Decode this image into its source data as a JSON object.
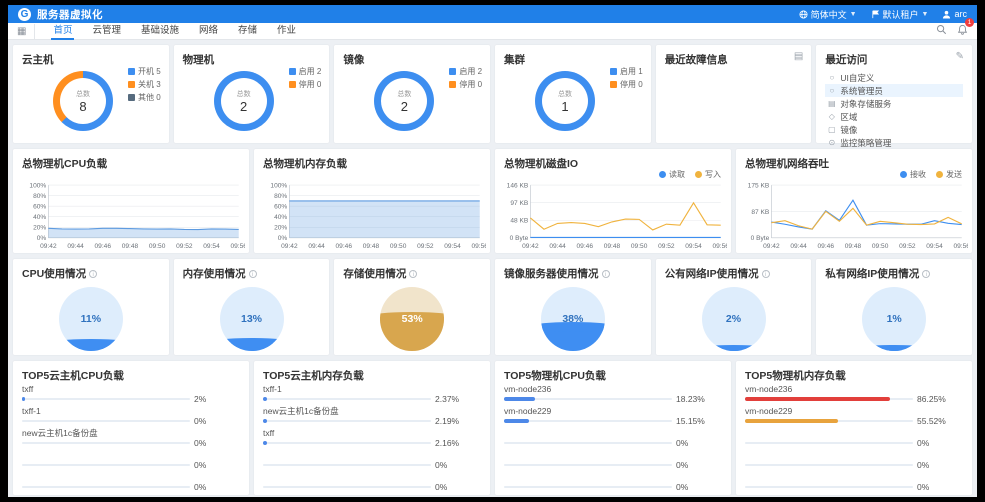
{
  "header": {
    "app_title": "服务器虚拟化",
    "language": "简体中文",
    "tenant": "默认租户",
    "user": "arc"
  },
  "nav": {
    "items": [
      {
        "label": "首页",
        "active": true
      },
      {
        "label": "云管理",
        "active": false
      },
      {
        "label": "基础设施",
        "active": false
      },
      {
        "label": "网络",
        "active": false
      },
      {
        "label": "存储",
        "active": false
      },
      {
        "label": "作业",
        "active": false
      }
    ],
    "notification_badge": "1"
  },
  "colors": {
    "primary": "#2080E8",
    "blue": "#3D8EF0",
    "orange": "#FF8F1F",
    "gray": "#566B7E",
    "yellow": "#F0B33E",
    "red": "#E23F3B",
    "bar_orange": "#E8A33D"
  },
  "donut_cards": [
    {
      "title": "云主机",
      "total_label": "总数",
      "total": "8",
      "segments": [
        {
          "label": "开机",
          "value": 5,
          "color": "#3D8EF0"
        },
        {
          "label": "关机",
          "value": 3,
          "color": "#FF8F1F"
        },
        {
          "label": "其他",
          "value": 0,
          "color": "#566B7E"
        }
      ]
    },
    {
      "title": "物理机",
      "total_label": "总数",
      "total": "2",
      "segments": [
        {
          "label": "启用",
          "value": 2,
          "color": "#3D8EF0"
        },
        {
          "label": "停用",
          "value": 0,
          "color": "#FF8F1F"
        }
      ]
    },
    {
      "title": "镜像",
      "total_label": "总数",
      "total": "2",
      "segments": [
        {
          "label": "启用",
          "value": 2,
          "color": "#3D8EF0"
        },
        {
          "label": "停用",
          "value": 0,
          "color": "#FF8F1F"
        }
      ]
    },
    {
      "title": "集群",
      "total_label": "总数",
      "total": "1",
      "segments": [
        {
          "label": "启用",
          "value": 1,
          "color": "#3D8EF0"
        },
        {
          "label": "停用",
          "value": 0,
          "color": "#FF8F1F"
        }
      ]
    }
  ],
  "recent_fault": {
    "title": "最近故障信息",
    "icon": "▤"
  },
  "recent_visits": {
    "title": "最近访问",
    "icon": "✎",
    "items": [
      {
        "icon": "○",
        "label": "UI自定义"
      },
      {
        "icon": "○",
        "label": "系统管理员"
      },
      {
        "icon": "▤",
        "label": "对象存储服务"
      },
      {
        "icon": "◇",
        "label": "区域"
      },
      {
        "icon": "▢",
        "label": "镜像"
      },
      {
        "icon": "⊙",
        "label": "监控策略管理"
      }
    ],
    "highlight_index": 1
  },
  "chart_data": [
    {
      "key": "cpu",
      "type": "area",
      "title": "总物理机CPU负载",
      "x_ticks": [
        "09:42",
        "09:44",
        "09:46",
        "09:48",
        "09:50",
        "09:52",
        "09:54",
        "09:56"
      ],
      "y_ticks": [
        "0%",
        "20%",
        "40%",
        "60%",
        "80%",
        "100%"
      ],
      "ymax": 100,
      "series": [
        {
          "name": "CPU负载",
          "color": "#5E9BE0",
          "fill": true,
          "values": [
            18,
            17,
            16.5,
            17,
            18,
            18,
            17.5,
            17,
            16.5,
            17,
            16,
            15.5,
            17,
            16.5,
            16
          ]
        }
      ]
    },
    {
      "key": "mem",
      "type": "area",
      "title": "总物理机内存负载",
      "x_ticks": [
        "09:42",
        "09:44",
        "09:46",
        "09:48",
        "09:50",
        "09:52",
        "09:54",
        "09:56"
      ],
      "y_ticks": [
        "0%",
        "20%",
        "40%",
        "60%",
        "80%",
        "100%"
      ],
      "ymax": 100,
      "series": [
        {
          "name": "内存负载",
          "color": "#5E9BE0",
          "fill": true,
          "values": [
            70,
            70,
            70,
            70,
            70,
            70,
            70,
            70,
            70,
            70,
            70,
            70,
            70,
            70,
            70
          ]
        }
      ]
    },
    {
      "key": "disk",
      "type": "line",
      "title": "总物理机磁盘IO",
      "legend": [
        "读取",
        "写入"
      ],
      "x_ticks": [
        "09:42",
        "09:44",
        "09:46",
        "09:48",
        "09:50",
        "09:52",
        "09:54",
        "09:56"
      ],
      "y_ticks": [
        "0 Byte",
        "48 KB",
        "97 KB",
        "146 KB"
      ],
      "ymax": 146,
      "series": [
        {
          "name": "读取",
          "color": "#3D8EF0",
          "fill": false,
          "values": [
            1,
            1,
            1,
            1,
            1,
            1,
            1,
            1,
            1,
            1,
            1,
            1,
            1,
            1,
            1
          ]
        },
        {
          "name": "写入",
          "color": "#F0B33E",
          "fill": false,
          "values": [
            55,
            24,
            40,
            42,
            40,
            31,
            44,
            52,
            51,
            22,
            38,
            35,
            97,
            36,
            35
          ]
        }
      ]
    },
    {
      "key": "net",
      "type": "line",
      "title": "总物理机网络吞吐",
      "legend": [
        "接收",
        "发送"
      ],
      "x_ticks": [
        "09:42",
        "09:44",
        "09:46",
        "09:48",
        "09:50",
        "09:52",
        "09:54",
        "09:56"
      ],
      "y_ticks": [
        "0 Byte",
        "87 KB",
        "175 KB"
      ],
      "ymax": 175,
      "series": [
        {
          "name": "接收",
          "color": "#3D8EF0",
          "fill": false,
          "values": [
            52,
            45,
            36,
            29,
            90,
            58,
            125,
            42,
            47,
            46,
            45,
            45,
            57,
            48,
            44
          ]
        },
        {
          "name": "发送",
          "color": "#F0B33E",
          "fill": false,
          "values": [
            50,
            57,
            40,
            29,
            88,
            55,
            98,
            42,
            55,
            50,
            45,
            44,
            46,
            68,
            46
          ]
        }
      ]
    }
  ],
  "gauges": [
    {
      "title": "CPU使用情况",
      "pct": 11,
      "value": "11%",
      "bg": "#DEEDFC",
      "fill": "#3F8EF2",
      "text_color": "#3072BE"
    },
    {
      "title": "内存使用情况",
      "pct": 13,
      "value": "13%",
      "bg": "#DEEDFC",
      "fill": "#3F8EF2",
      "text_color": "#3072BE"
    },
    {
      "title": "存储使用情况",
      "pct": 53,
      "value": "53%",
      "bg": "#F1E4CB",
      "fill": "#D8A64E",
      "text_color": "#FFFFFF"
    },
    {
      "title": "镜像服务器使用情况",
      "pct": 38,
      "value": "38%",
      "bg": "#DEEDFC",
      "fill": "#3F8EF2",
      "text_color": "#3072BE"
    },
    {
      "title": "公有网络IP使用情况",
      "pct": 2,
      "value": "2%",
      "bg": "#DEEDFC",
      "fill": "#3F8EF2",
      "text_color": "#3072BE"
    },
    {
      "title": "私有网络IP使用情况",
      "pct": 1,
      "value": "1%",
      "bg": "#DEEDFC",
      "fill": "#3F8EF2",
      "text_color": "#3072BE"
    }
  ],
  "top5": [
    {
      "title": "TOP5云主机CPU负载",
      "items": [
        {
          "label": "txff",
          "value": "2%",
          "pct": 2,
          "color": "#4D88E8"
        },
        {
          "label": "txff-1",
          "value": "0%",
          "pct": 0,
          "color": "#4D88E8"
        },
        {
          "label": "new云主机1c备份盘",
          "value": "0%",
          "pct": 0,
          "color": "#4D88E8"
        },
        {
          "label": "",
          "value": "0%",
          "pct": 0,
          "color": "#4D88E8"
        },
        {
          "label": "",
          "value": "0%",
          "pct": 0,
          "color": "#4D88E8"
        }
      ]
    },
    {
      "title": "TOP5云主机内存负载",
      "items": [
        {
          "label": "txff-1",
          "value": "2.37%",
          "pct": 2.37,
          "color": "#4D88E8"
        },
        {
          "label": "new云主机1c备份盘",
          "value": "2.19%",
          "pct": 2.19,
          "color": "#4D88E8"
        },
        {
          "label": "txff",
          "value": "2.16%",
          "pct": 2.16,
          "color": "#4D88E8"
        },
        {
          "label": "",
          "value": "0%",
          "pct": 0,
          "color": "#4D88E8"
        },
        {
          "label": "",
          "value": "0%",
          "pct": 0,
          "color": "#4D88E8"
        }
      ]
    },
    {
      "title": "TOP5物理机CPU负载",
      "items": [
        {
          "label": "vm-node236",
          "value": "18.23%",
          "pct": 18.23,
          "color": "#4D88E8"
        },
        {
          "label": "vm-node229",
          "value": "15.15%",
          "pct": 15.15,
          "color": "#4D88E8"
        },
        {
          "label": "",
          "value": "0%",
          "pct": 0,
          "color": "#4D88E8"
        },
        {
          "label": "",
          "value": "0%",
          "pct": 0,
          "color": "#4D88E8"
        },
        {
          "label": "",
          "value": "0%",
          "pct": 0,
          "color": "#4D88E8"
        }
      ]
    },
    {
      "title": "TOP5物理机内存负载",
      "items": [
        {
          "label": "vm-node236",
          "value": "86.25%",
          "pct": 86.25,
          "color": "#E23F3B"
        },
        {
          "label": "vm-node229",
          "value": "55.52%",
          "pct": 55.52,
          "color": "#E8A33D"
        },
        {
          "label": "",
          "value": "0%",
          "pct": 0,
          "color": "#4D88E8"
        },
        {
          "label": "",
          "value": "0%",
          "pct": 0,
          "color": "#4D88E8"
        },
        {
          "label": "",
          "value": "0%",
          "pct": 0,
          "color": "#4D88E8"
        }
      ]
    }
  ]
}
